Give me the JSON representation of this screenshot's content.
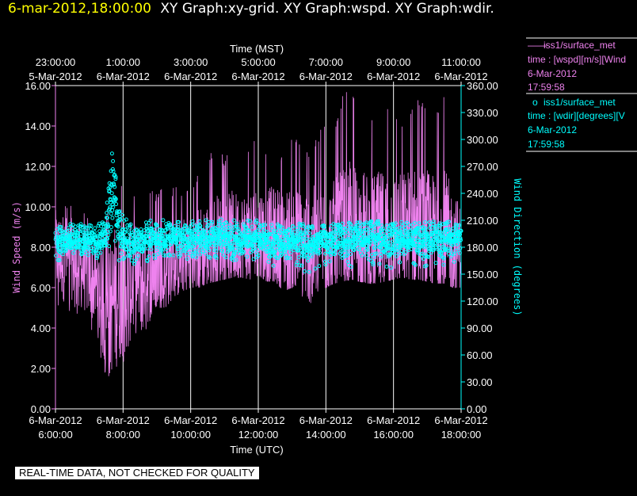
{
  "header": {
    "datetime": "6-mar-2012,18:00:00",
    "graphs": "XY Graph:xy-grid.  XY Graph:wspd.  XY Graph:wdir."
  },
  "footer": {
    "notice": "REAL-TIME DATA, NOT CHECKED FOR QUALITY"
  },
  "colors": {
    "wspd": "#ee82ee",
    "wdir": "#00ffff",
    "grid": "#ffffff",
    "background": "#000000"
  },
  "legend": [
    {
      "symbol": "——",
      "name": "iss1/surface_met",
      "detail": "time : [wspd][m/s][Wind",
      "date": "6-Mar-2012",
      "time": "17:59:58",
      "color": "#ee82ee"
    },
    {
      "symbol": "o",
      "name": "iss1/surface_met",
      "detail": "time : [wdir][degrees][V",
      "date": "6-Mar-2012",
      "time": "17:59:58",
      "color": "#00ffff"
    }
  ],
  "chart_data": {
    "type": "line",
    "x_axis_bottom": {
      "label": "Time (UTC)",
      "ticks": [
        {
          "date": "6-Mar-2012",
          "time": "6:00:00",
          "hour": 6
        },
        {
          "date": "6-Mar-2012",
          "time": "8:00:00",
          "hour": 8
        },
        {
          "date": "6-Mar-2012",
          "time": "10:00:00",
          "hour": 10
        },
        {
          "date": "6-Mar-2012",
          "time": "12:00:00",
          "hour": 12
        },
        {
          "date": "6-Mar-2012",
          "time": "14:00:00",
          "hour": 14
        },
        {
          "date": "6-Mar-2012",
          "time": "16:00:00",
          "hour": 16
        },
        {
          "date": "6-Mar-2012",
          "time": "18:00:00",
          "hour": 18
        }
      ],
      "range_hours_utc": [
        6,
        18
      ]
    },
    "x_axis_top": {
      "label": "Time (MST)",
      "ticks": [
        {
          "time": "23:00:00",
          "date": "5-Mar-2012",
          "hour_utc": 6
        },
        {
          "time": "1:00:00",
          "date": "6-Mar-2012",
          "hour_utc": 8
        },
        {
          "time": "3:00:00",
          "date": "6-Mar-2012",
          "hour_utc": 10
        },
        {
          "time": "5:00:00",
          "date": "6-Mar-2012",
          "hour_utc": 12
        },
        {
          "time": "7:00:00",
          "date": "6-Mar-2012",
          "hour_utc": 14
        },
        {
          "time": "9:00:00",
          "date": "6-Mar-2012",
          "hour_utc": 16
        },
        {
          "time": "11:00:00",
          "date": "6-Mar-2012",
          "hour_utc": 18
        }
      ]
    },
    "y_axis_left": {
      "label": "Wind Speed (m/s)",
      "ticks": [
        "0.00",
        "2.00",
        "4.00",
        "6.00",
        "8.00",
        "10.00",
        "12.00",
        "14.00",
        "16.00"
      ],
      "range": [
        0,
        16
      ]
    },
    "y_axis_right": {
      "label": "Wind Direction (degrees)",
      "ticks": [
        "0.00",
        "30.00",
        "60.00",
        "90.00",
        "120.00",
        "150.00",
        "180.00",
        "210.00",
        "240.00",
        "270.00",
        "300.00",
        "330.00",
        "360.00"
      ],
      "range": [
        0,
        360
      ]
    },
    "grid": "vertical lines at x ticks",
    "series": [
      {
        "name": "iss1/surface_met",
        "variable": "wspd",
        "style": "line",
        "axis": "left",
        "x_hours_utc": [
          6.0,
          6.25,
          6.5,
          6.75,
          7.0,
          7.25,
          7.5,
          7.75,
          8.0,
          8.25,
          8.5,
          8.75,
          9.0,
          9.25,
          9.5,
          9.75,
          10.0,
          10.25,
          10.5,
          10.75,
          11.0,
          11.25,
          11.5,
          11.75,
          12.0,
          12.25,
          12.5,
          12.75,
          13.0,
          13.25,
          13.5,
          13.75,
          14.0,
          14.25,
          14.5,
          14.75,
          15.0,
          15.25,
          15.5,
          15.75,
          16.0,
          16.25,
          16.5,
          16.75,
          17.0,
          17.25,
          17.5,
          17.75,
          18.0
        ],
        "mean": [
          7.8,
          7.5,
          7.4,
          7.0,
          6.7,
          6.0,
          4.5,
          5.5,
          6.0,
          6.3,
          6.6,
          6.8,
          7.0,
          7.0,
          7.3,
          7.5,
          7.6,
          7.8,
          8.0,
          8.2,
          8.3,
          8.4,
          8.5,
          8.4,
          8.6,
          8.4,
          8.4,
          8.3,
          8.2,
          8.1,
          8.2,
          8.1,
          8.2,
          8.4,
          8.5,
          8.7,
          8.6,
          8.5,
          8.4,
          8.5,
          8.6,
          8.7,
          8.8,
          8.6,
          8.6,
          8.5,
          8.4,
          8.1,
          8.0
        ],
        "min": [
          5.0,
          4.5,
          4.8,
          4.5,
          4.0,
          3.0,
          1.5,
          1.8,
          2.2,
          3.0,
          3.5,
          4.0,
          5.0,
          5.0,
          5.5,
          5.8,
          6.0,
          6.0,
          6.2,
          6.3,
          6.4,
          6.5,
          6.5,
          6.4,
          6.6,
          6.3,
          6.3,
          5.8,
          6.0,
          5.5,
          5.0,
          5.8,
          6.0,
          6.2,
          6.3,
          6.4,
          6.3,
          6.2,
          6.2,
          6.3,
          6.4,
          6.5,
          6.4,
          6.4,
          6.3,
          6.2,
          6.2,
          6.0,
          6.0
        ],
        "max": [
          10.5,
          10.4,
          10.2,
          10.0,
          9.8,
          8.5,
          9.5,
          11.5,
          11.2,
          10.8,
          10.5,
          11.0,
          10.8,
          11.0,
          11.0,
          11.0,
          11.2,
          12.0,
          12.5,
          13.0,
          12.5,
          13.0,
          12.5,
          13.0,
          13.5,
          13.0,
          13.5,
          12.5,
          14.0,
          13.0,
          13.0,
          13.5,
          14.5,
          14.0,
          15.5,
          16.0,
          15.5,
          14.5,
          15.0,
          15.5,
          15.0,
          14.5,
          15.0,
          15.5,
          15.0,
          14.5,
          15.8,
          13.5,
          11.5
        ]
      },
      {
        "name": "iss1/surface_met",
        "variable": "wdir",
        "style": "scatter",
        "axis": "right",
        "x_hours_utc": [
          6.0,
          6.25,
          6.5,
          6.75,
          7.0,
          7.25,
          7.5,
          7.6,
          7.7,
          7.75,
          7.85,
          8.0,
          8.25,
          8.5,
          8.75,
          9.0,
          9.25,
          9.5,
          9.75,
          10.0,
          10.25,
          10.5,
          10.75,
          11.0,
          11.25,
          11.5,
          11.75,
          12.0,
          12.25,
          12.5,
          12.75,
          13.0,
          13.25,
          13.5,
          13.75,
          14.0,
          14.25,
          14.5,
          14.75,
          15.0,
          15.25,
          15.5,
          15.75,
          16.0,
          16.25,
          16.5,
          16.75,
          17.0,
          17.25,
          17.5,
          17.75,
          18.0
        ],
        "mean": [
          185,
          188,
          190,
          186,
          187,
          185,
          200,
          225,
          250,
          240,
          200,
          190,
          185,
          187,
          188,
          188,
          190,
          192,
          190,
          188,
          190,
          190,
          191,
          190,
          188,
          190,
          190,
          188,
          187,
          186,
          188,
          187,
          186,
          185,
          186,
          185,
          187,
          186,
          188,
          189,
          188,
          190,
          188,
          187,
          188,
          188,
          189,
          188,
          187,
          188,
          190,
          192
        ],
        "min": [
          165,
          165,
          170,
          165,
          168,
          160,
          165,
          180,
          205,
          190,
          165,
          150,
          160,
          165,
          162,
          165,
          168,
          170,
          168,
          165,
          168,
          168,
          168,
          165,
          165,
          167,
          166,
          165,
          163,
          158,
          162,
          160,
          158,
          148,
          155,
          160,
          160,
          162,
          158,
          160,
          162,
          160,
          158,
          157,
          160,
          158,
          160,
          158,
          160,
          158,
          160,
          162
        ],
        "max": [
          205,
          208,
          210,
          206,
          207,
          205,
          225,
          255,
          300,
          280,
          225,
          215,
          205,
          208,
          210,
          210,
          212,
          212,
          212,
          210,
          210,
          212,
          210,
          212,
          210,
          210,
          210,
          210,
          207,
          206,
          208,
          207,
          206,
          205,
          206,
          205,
          207,
          208,
          208,
          210,
          208,
          210,
          208,
          207,
          208,
          208,
          209,
          208,
          210,
          208,
          210,
          212
        ]
      }
    ]
  }
}
